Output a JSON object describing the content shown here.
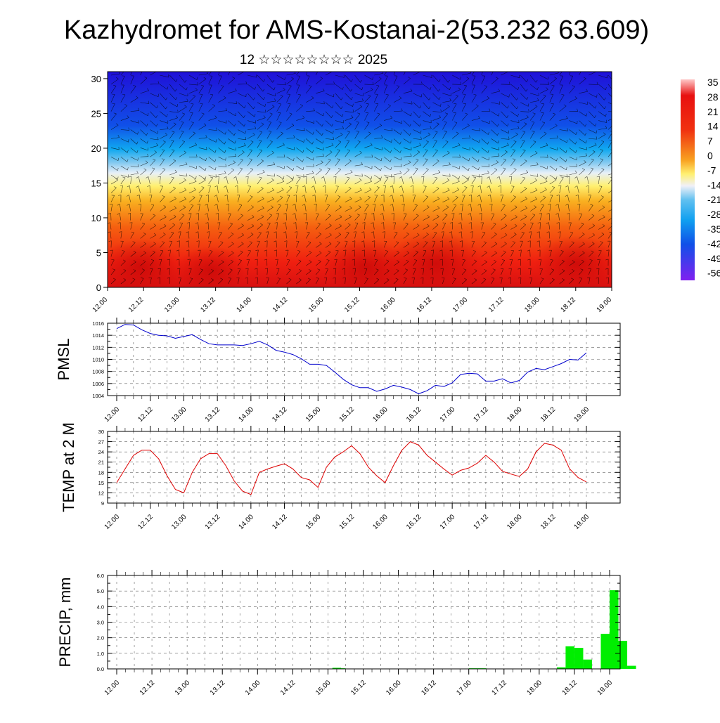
{
  "title": "Kazhydromet for AMS-Kostanai-2(53.232 63.609)",
  "subtitle": "12 ☆☆☆☆☆☆☆☆ 2025",
  "time_ticks": [
    "12.00",
    "12.12",
    "13.00",
    "13.12",
    "14.00",
    "14.12",
    "15.00",
    "15.12",
    "16.00",
    "16.12",
    "17.00",
    "17.12",
    "18.00",
    "18.12",
    "19.00"
  ],
  "chart_data": [
    {
      "type": "heatmap",
      "name": "cross-section",
      "yticks": [
        "0",
        "5",
        "10",
        "15",
        "20",
        "25",
        "30"
      ],
      "ylim": [
        0,
        31
      ],
      "colorbar_labels": [
        "35",
        "28",
        "21",
        "14",
        "7",
        "0",
        "-7",
        "-14",
        "-21",
        "-28",
        "-35",
        "-42",
        "-49",
        "-56"
      ],
      "colorbar_range": [
        -56,
        35
      ],
      "colors": {
        "cold": "#3010e0",
        "mid": "#fff070",
        "warm": "#e81010"
      },
      "wind_barbs": true
    },
    {
      "type": "line",
      "ylabel": "PMSL",
      "yticks": [
        "1016",
        "1014",
        "1012",
        "1010",
        "1008",
        "1006",
        "1004"
      ],
      "ylim": [
        1004,
        1016
      ],
      "color": "#0000cc",
      "y": [
        1015.1,
        1015.8,
        1015.7,
        1014.9,
        1014.3,
        1014.0,
        1013.9,
        1013.5,
        1013.8,
        1014.1,
        1013.3,
        1012.6,
        1012.4,
        1012.4,
        1012.4,
        1012.3,
        1012.6,
        1013.0,
        1012.4,
        1011.5,
        1011.2,
        1010.8,
        1010.1,
        1009.2,
        1009.2,
        1009.0,
        1007.9,
        1006.7,
        1005.8,
        1005.3,
        1005.3,
        1004.7,
        1005.1,
        1005.7,
        1005.4,
        1005.0,
        1004.3,
        1004.8,
        1005.7,
        1005.5,
        1006.1,
        1007.5,
        1007.7,
        1007.6,
        1006.4,
        1006.4,
        1006.8,
        1006.1,
        1006.5,
        1007.9,
        1008.5,
        1008.3,
        1008.8,
        1009.3,
        1010.0,
        1009.9,
        1011.1
      ]
    },
    {
      "type": "line",
      "ylabel": "TEMP at 2 M",
      "yticks": [
        "30",
        "27",
        "24",
        "21",
        "18",
        "15",
        "12",
        "9"
      ],
      "ylim": [
        9,
        30
      ],
      "color": "#dd0000",
      "y": [
        15,
        19,
        23,
        24.5,
        24.5,
        22,
        17,
        13,
        12,
        18,
        22,
        23.5,
        23.5,
        20,
        15.5,
        12.5,
        11.5,
        18,
        19,
        19.8,
        20.5,
        19,
        16.5,
        15.8,
        13.6,
        19.5,
        22.5,
        24,
        25.8,
        23.5,
        19.5,
        17,
        15,
        20,
        24.5,
        27,
        26,
        23,
        21,
        19,
        17.2,
        18.6,
        19.3,
        20.7,
        23,
        21,
        18.3,
        17.5,
        16.8,
        19,
        24,
        26.5,
        26,
        24.5,
        19,
        16.5,
        15.2
      ]
    },
    {
      "type": "bar",
      "ylabel": "PRECIP, mm",
      "yticks": [
        "6.0",
        "5.0",
        "4.0",
        "3.0",
        "2.0",
        "1.0",
        "0.0"
      ],
      "ylim": [
        0,
        6
      ],
      "color": "#00ee00",
      "bars": [
        {
          "x": 25.0,
          "value": 0.07
        },
        {
          "x": 25.5,
          "value": 0.04
        },
        {
          "x": 40.5,
          "value": 0.04
        },
        {
          "x": 41.5,
          "value": 0.04
        },
        {
          "x": 50.5,
          "value": 0.1
        },
        {
          "x": 51.5,
          "value": 1.45
        },
        {
          "x": 52.5,
          "value": 1.35
        },
        {
          "x": 53.5,
          "value": 0.6
        },
        {
          "x": 55.5,
          "value": 2.25
        },
        {
          "x": 56.5,
          "value": 5.05
        },
        {
          "x": 57.5,
          "value": 1.8
        },
        {
          "x": 58.5,
          "value": 0.2
        }
      ]
    }
  ]
}
